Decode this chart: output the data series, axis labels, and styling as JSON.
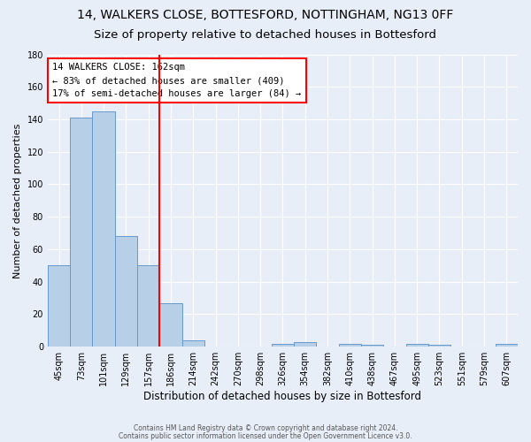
{
  "title": "14, WALKERS CLOSE, BOTTESFORD, NOTTINGHAM, NG13 0FF",
  "subtitle": "Size of property relative to detached houses in Bottesford",
  "xlabel": "Distribution of detached houses by size in Bottesford",
  "ylabel": "Number of detached properties",
  "categories": [
    "45sqm",
    "73sqm",
    "101sqm",
    "129sqm",
    "157sqm",
    "186sqm",
    "214sqm",
    "242sqm",
    "270sqm",
    "298sqm",
    "326sqm",
    "354sqm",
    "382sqm",
    "410sqm",
    "438sqm",
    "467sqm",
    "495sqm",
    "523sqm",
    "551sqm",
    "579sqm",
    "607sqm"
  ],
  "values": [
    50,
    141,
    145,
    68,
    50,
    27,
    4,
    0,
    0,
    0,
    2,
    3,
    0,
    2,
    1,
    0,
    2,
    1,
    0,
    0,
    2
  ],
  "bar_color": "#b8cfe8",
  "bar_edge_color": "#6699cc",
  "ylim": [
    0,
    180
  ],
  "yticks": [
    0,
    20,
    40,
    60,
    80,
    100,
    120,
    140,
    160,
    180
  ],
  "red_line_x": 4.5,
  "annotation_title": "14 WALKERS CLOSE: 162sqm",
  "annotation_line1": "← 83% of detached houses are smaller (409)",
  "annotation_line2": "17% of semi-detached houses are larger (84) →",
  "footer1": "Contains HM Land Registry data © Crown copyright and database right 2024.",
  "footer2": "Contains public sector information licensed under the Open Government Licence v3.0.",
  "background_color": "#e8eef8",
  "title_fontsize": 10,
  "subtitle_fontsize": 9.5,
  "ylabel_fontsize": 8,
  "xlabel_fontsize": 8.5,
  "tick_fontsize": 7,
  "annotation_fontsize": 7.5,
  "footer_fontsize": 5.5
}
